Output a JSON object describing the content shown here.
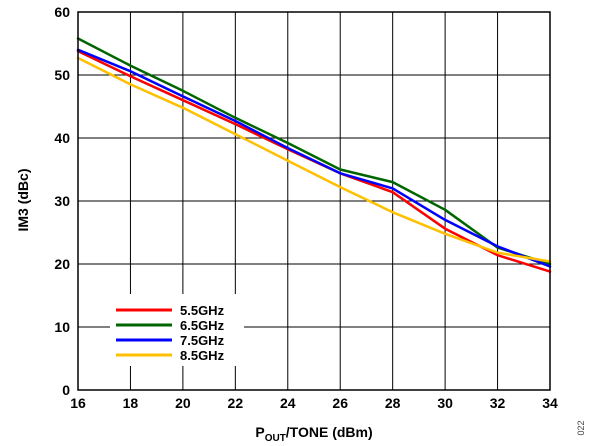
{
  "figure_id": "022",
  "chart_data": {
    "type": "line",
    "title": "",
    "xlabel": {
      "main": "P",
      "sub": "OUT",
      "rest": "/TONE (dBm)"
    },
    "ylabel": "IM3 (dBc)",
    "xlim": [
      16,
      34
    ],
    "ylim": [
      0,
      60
    ],
    "xticks": [
      16,
      18,
      20,
      22,
      24,
      26,
      28,
      30,
      32,
      34
    ],
    "yticks": [
      0,
      10,
      20,
      30,
      40,
      50,
      60
    ],
    "grid": true,
    "legend_position": "bottom-left",
    "x": [
      16,
      18,
      20,
      22,
      24,
      26,
      28,
      30,
      32,
      34
    ],
    "series": [
      {
        "name": "5.5GHz",
        "color": "#ff0000",
        "values": [
          53.8,
          49.8,
          46.0,
          42.2,
          38.2,
          34.4,
          31.4,
          25.6,
          21.4,
          18.8
        ]
      },
      {
        "name": "6.5GHz",
        "color": "#006400",
        "values": [
          55.8,
          51.5,
          47.5,
          43.2,
          39.2,
          35.0,
          33.0,
          28.6,
          22.6,
          20.0
        ]
      },
      {
        "name": "7.5GHz",
        "color": "#0000ff",
        "values": [
          54.0,
          50.6,
          46.6,
          42.7,
          38.4,
          34.4,
          32.0,
          27.0,
          22.8,
          19.6
        ]
      },
      {
        "name": "8.5GHz",
        "color": "#ffc000",
        "values": [
          52.7,
          48.5,
          44.8,
          40.6,
          36.4,
          32.2,
          28.2,
          24.8,
          21.8,
          20.4
        ]
      }
    ]
  }
}
